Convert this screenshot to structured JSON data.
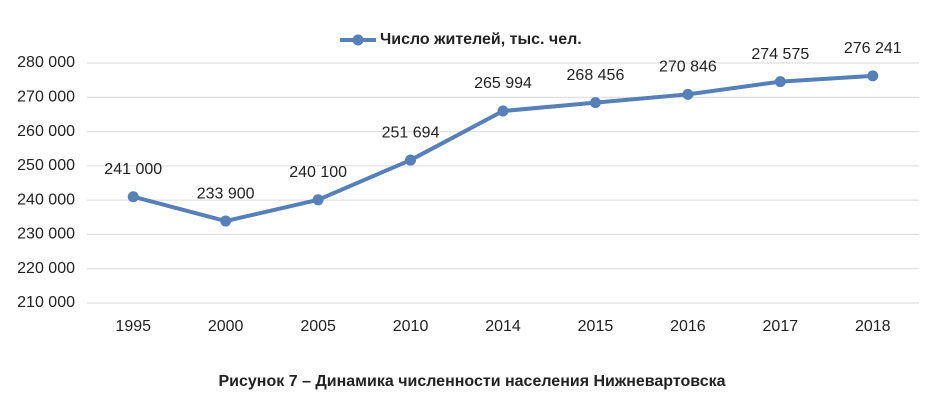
{
  "chart_data": {
    "type": "line",
    "caption": "Рисунок 7 – Динамика численности населения Нижневартовска",
    "categories": [
      "1995",
      "2000",
      "2005",
      "2010",
      "2014",
      "2015",
      "2016",
      "2017",
      "2018"
    ],
    "series": [
      {
        "name": "Число жителей, тыс. чел.",
        "color": "#5580b8",
        "values": [
          241000,
          233900,
          240100,
          251694,
          265994,
          268456,
          270846,
          274575,
          276241
        ],
        "value_labels": [
          "241 000",
          "233 900",
          "240 100",
          "251 694",
          "265 994",
          "268 456",
          "270 846",
          "274 575",
          "276 241"
        ]
      }
    ],
    "ylim": [
      210000,
      280000
    ],
    "yticks": [
      {
        "value": 210000,
        "label": "210 000"
      },
      {
        "value": 220000,
        "label": "220 000"
      },
      {
        "value": 230000,
        "label": "230 000"
      },
      {
        "value": 240000,
        "label": "240 000"
      },
      {
        "value": 250000,
        "label": "250 000"
      },
      {
        "value": 260000,
        "label": "260 000"
      },
      {
        "value": 270000,
        "label": "270 000"
      },
      {
        "value": 280000,
        "label": "280 000"
      }
    ],
    "grid": true,
    "legend": "top"
  }
}
